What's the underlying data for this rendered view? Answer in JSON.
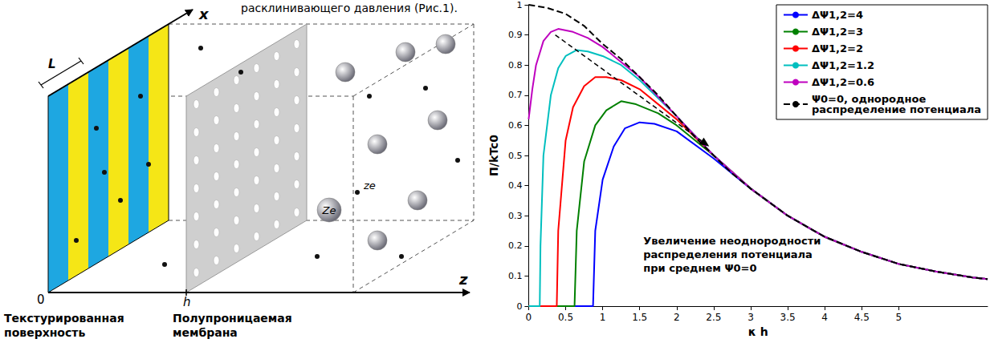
{
  "page_text": "расклинивающего давления (Рис.1).",
  "diagram": {
    "axes": {
      "x": "x",
      "z": "z",
      "origin": "0"
    },
    "period_label": "L",
    "membrane_position_label": "h",
    "particles": {
      "large": "Ze",
      "small": "ze"
    },
    "captions": [
      "Текстурированная поверхность",
      "Полупроницаемая мембрана"
    ]
  },
  "chart_data": {
    "type": "line",
    "x_label": "κ h",
    "y_label": "Π/kTc0",
    "xlim": [
      0,
      6.2
    ],
    "xticks": [
      0,
      0.5,
      1,
      1.5,
      2,
      2.5,
      3,
      3.5,
      4,
      4.5,
      5
    ],
    "ylim": [
      0,
      1
    ],
    "yticks": [
      0,
      0.1,
      0.2,
      0.3,
      0.4,
      0.5,
      0.6,
      0.7,
      0.8,
      0.9,
      1
    ],
    "grid": false,
    "legend": "upper right",
    "series": [
      {
        "name": "ΔΨ1,2=4",
        "color": "#0000ff",
        "line_style": "solid",
        "x": [
          0,
          0.87,
          0.9,
          1,
          1.15,
          1.3,
          1.5,
          1.7,
          2,
          2.5,
          3,
          3.5,
          4,
          4.5,
          5,
          5.5,
          6,
          6.2
        ],
        "values": [
          0,
          0,
          0.25,
          0.42,
          0.53,
          0.59,
          0.61,
          0.605,
          0.58,
          0.49,
          0.39,
          0.3,
          0.23,
          0.18,
          0.14,
          0.115,
          0.095,
          0.09
        ]
      },
      {
        "name": "ΔΨ1,2=3",
        "color": "#008000",
        "line_style": "solid",
        "x": [
          0,
          0.62,
          0.65,
          0.75,
          0.9,
          1.05,
          1.25,
          1.45,
          1.75,
          2,
          2.5,
          3,
          3.5,
          4,
          4.5,
          5,
          5.5,
          6,
          6.2
        ],
        "values": [
          0,
          0,
          0.25,
          0.48,
          0.6,
          0.65,
          0.68,
          0.67,
          0.64,
          0.6,
          0.5,
          0.39,
          0.3,
          0.23,
          0.18,
          0.14,
          0.115,
          0.095,
          0.09
        ]
      },
      {
        "name": "ΔΨ1,2=2",
        "color": "#ff0000",
        "line_style": "solid",
        "x": [
          0,
          0.38,
          0.4,
          0.5,
          0.6,
          0.75,
          0.9,
          1.05,
          1.25,
          1.5,
          2,
          2.5,
          3,
          3.5,
          4,
          4.5,
          5,
          5.5,
          6,
          6.2
        ],
        "values": [
          0,
          0,
          0.25,
          0.55,
          0.66,
          0.73,
          0.76,
          0.76,
          0.75,
          0.72,
          0.62,
          0.5,
          0.39,
          0.3,
          0.23,
          0.18,
          0.14,
          0.115,
          0.095,
          0.09
        ]
      },
      {
        "name": "ΔΨ1,2=1.2",
        "color": "#00bfbf",
        "line_style": "solid",
        "x": [
          0,
          0.15,
          0.16,
          0.2,
          0.3,
          0.4,
          0.5,
          0.65,
          0.8,
          1,
          1.25,
          1.5,
          2,
          2.5,
          3,
          3.5,
          4,
          4.5,
          5,
          5.5,
          6,
          6.2
        ],
        "values": [
          0,
          0,
          0.2,
          0.5,
          0.7,
          0.79,
          0.83,
          0.85,
          0.845,
          0.83,
          0.8,
          0.75,
          0.63,
          0.5,
          0.39,
          0.3,
          0.23,
          0.18,
          0.14,
          0.115,
          0.095,
          0.09
        ]
      },
      {
        "name": "ΔΨ1,2=0.6",
        "color": "#bf00bf",
        "line_style": "solid",
        "x": [
          0,
          0.05,
          0.1,
          0.2,
          0.3,
          0.4,
          0.6,
          0.8,
          1,
          1.25,
          1.5,
          2,
          2.5,
          3,
          3.5,
          4,
          4.5,
          5,
          5.5,
          6,
          6.2
        ],
        "values": [
          0.62,
          0.72,
          0.8,
          0.88,
          0.91,
          0.92,
          0.91,
          0.89,
          0.86,
          0.81,
          0.76,
          0.63,
          0.5,
          0.39,
          0.3,
          0.23,
          0.18,
          0.14,
          0.115,
          0.095,
          0.09
        ]
      },
      {
        "name": "Ψ0=0, однородное распределение потенциала",
        "color": "#000000",
        "line_style": "dashed",
        "x": [
          0,
          0.25,
          0.5,
          0.75,
          1,
          1.25,
          1.5,
          1.75,
          2,
          2.25,
          2.5,
          2.75,
          3,
          3.5,
          4,
          4.5,
          5,
          5.5,
          6,
          6.2
        ],
        "values": [
          1,
          0.99,
          0.97,
          0.93,
          0.87,
          0.82,
          0.76,
          0.7,
          0.63,
          0.56,
          0.5,
          0.44,
          0.39,
          0.3,
          0.23,
          0.18,
          0.14,
          0.115,
          0.095,
          0.09
        ]
      }
    ],
    "annotation": {
      "text": "Увеличение неоднородности распределения потенциала при среднем Ψ0=0",
      "x": 1.55,
      "y": 0.24,
      "arrow_from": [
        0.36,
        0.9
      ],
      "arrow_to": [
        2.44,
        0.53
      ]
    }
  }
}
